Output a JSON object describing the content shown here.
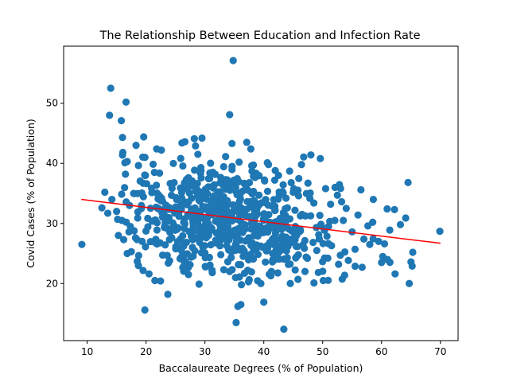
{
  "chart_data": {
    "type": "scatter",
    "title": "The Relationship Between Education and Infection Rate",
    "xlabel": "Baccalaureate Degrees (% of Population)",
    "ylabel": "Covid Cases (% of Population)",
    "xlim": [
      6,
      73
    ],
    "ylim": [
      10.5,
      59.5
    ],
    "xticks": [
      10,
      20,
      30,
      40,
      50,
      60,
      70
    ],
    "yticks": [
      20,
      30,
      40,
      50
    ],
    "grid": false,
    "point_color": "#1f77b4",
    "trend_color": "#ff0000",
    "trendline": {
      "x": [
        9,
        70
      ],
      "y": [
        34.0,
        26.7
      ]
    },
    "cluster": {
      "cx": 33.5,
      "cy": 31.0,
      "sx": 9.5,
      "sy": 4.6,
      "slope": -0.12,
      "count": 700
    },
    "points": [
      [
        9.1,
        26.5
      ],
      [
        12.5,
        32.6
      ],
      [
        13.0,
        35.2
      ],
      [
        13.5,
        31.7
      ],
      [
        14.0,
        52.5
      ],
      [
        13.8,
        48.0
      ],
      [
        15.8,
        47.1
      ],
      [
        16.6,
        50.2
      ],
      [
        16.0,
        44.3
      ],
      [
        16.4,
        40.1
      ],
      [
        16.8,
        40.3
      ],
      [
        16.5,
        38.2
      ],
      [
        14.2,
        34.0
      ],
      [
        15.0,
        32.0
      ],
      [
        15.3,
        28.0
      ],
      [
        16.2,
        27.3
      ],
      [
        16.8,
        25.0
      ],
      [
        17.5,
        25.3
      ],
      [
        18.5,
        23.7
      ],
      [
        18.7,
        23.0
      ],
      [
        20.5,
        21.6
      ],
      [
        21.5,
        20.5
      ],
      [
        19.8,
        15.6
      ],
      [
        23.7,
        18.2
      ],
      [
        19.6,
        44.4
      ],
      [
        18.3,
        43.0
      ],
      [
        21.8,
        42.4
      ],
      [
        22.6,
        42.2
      ],
      [
        26.6,
        43.6
      ],
      [
        26.1,
        43.4
      ],
      [
        28.2,
        44.1
      ],
      [
        29.5,
        44.2
      ],
      [
        28.8,
        41.5
      ],
      [
        28.4,
        42.9
      ],
      [
        34.2,
        48.1
      ],
      [
        34.8,
        57.1
      ],
      [
        34.6,
        43.3
      ],
      [
        35.8,
        40.2
      ],
      [
        37.1,
        43.5
      ],
      [
        37.8,
        42.4
      ],
      [
        40.6,
        40.1
      ],
      [
        40.8,
        39.8
      ],
      [
        42.5,
        38.0
      ],
      [
        46.4,
        39.8
      ],
      [
        48.0,
        41.4
      ],
      [
        49.6,
        40.8
      ],
      [
        52.1,
        36.0
      ],
      [
        56.5,
        35.6
      ],
      [
        58.6,
        34.0
      ],
      [
        63.2,
        29.8
      ],
      [
        64.5,
        36.8
      ],
      [
        62.2,
        32.3
      ],
      [
        65.0,
        23.6
      ],
      [
        64.7,
        20.0
      ],
      [
        65.2,
        22.9
      ],
      [
        65.3,
        25.2
      ],
      [
        69.9,
        28.7
      ],
      [
        61.4,
        28.9
      ],
      [
        62.3,
        21.6
      ],
      [
        60.0,
        23.5
      ],
      [
        56.7,
        22.7
      ],
      [
        52.7,
        23.2
      ],
      [
        50.1,
        20.5
      ],
      [
        47.0,
        22.0
      ],
      [
        45.8,
        20.7
      ],
      [
        44.5,
        20.0
      ],
      [
        43.4,
        12.4
      ],
      [
        41.2,
        21.3
      ],
      [
        40.0,
        16.9
      ],
      [
        39.5,
        20.0
      ],
      [
        37.4,
        20.3
      ],
      [
        36.1,
        16.5
      ],
      [
        35.6,
        16.2
      ],
      [
        35.3,
        13.5
      ],
      [
        35.2,
        21.0
      ],
      [
        34.2,
        22.0
      ],
      [
        36.2,
        19.8
      ],
      [
        33.2,
        22.3
      ],
      [
        31.2,
        22.2
      ],
      [
        29.0,
        19.9
      ],
      [
        27.2,
        21.5
      ],
      [
        24.0,
        23.8
      ],
      [
        26.5,
        23.6
      ],
      [
        30.0,
        25.1
      ],
      [
        43.0,
        29.0
      ],
      [
        46.5,
        31.5
      ],
      [
        48.5,
        33.4
      ],
      [
        51.0,
        29.5
      ],
      [
        53.5,
        30.5
      ],
      [
        55.0,
        28.6
      ],
      [
        57.0,
        27.4
      ],
      [
        58.0,
        26.5
      ],
      [
        59.5,
        27.0
      ],
      [
        60.5,
        26.6
      ],
      [
        54.0,
        32.5
      ],
      [
        52.5,
        34.7
      ],
      [
        50.5,
        35.8
      ],
      [
        47.5,
        36.7
      ],
      [
        45.0,
        35.2
      ],
      [
        44.0,
        32.6
      ],
      [
        56.0,
        31.4
      ],
      [
        58.5,
        30.2
      ],
      [
        60.2,
        24.5
      ],
      [
        61.0,
        24.0
      ],
      [
        55.5,
        25.7
      ],
      [
        53.0,
        24.7
      ],
      [
        51.5,
        26.3
      ],
      [
        49.0,
        25.5
      ],
      [
        47.2,
        24.4
      ],
      [
        45.5,
        26.2
      ],
      [
        43.8,
        27.7
      ],
      [
        42.0,
        28.4
      ]
    ]
  }
}
